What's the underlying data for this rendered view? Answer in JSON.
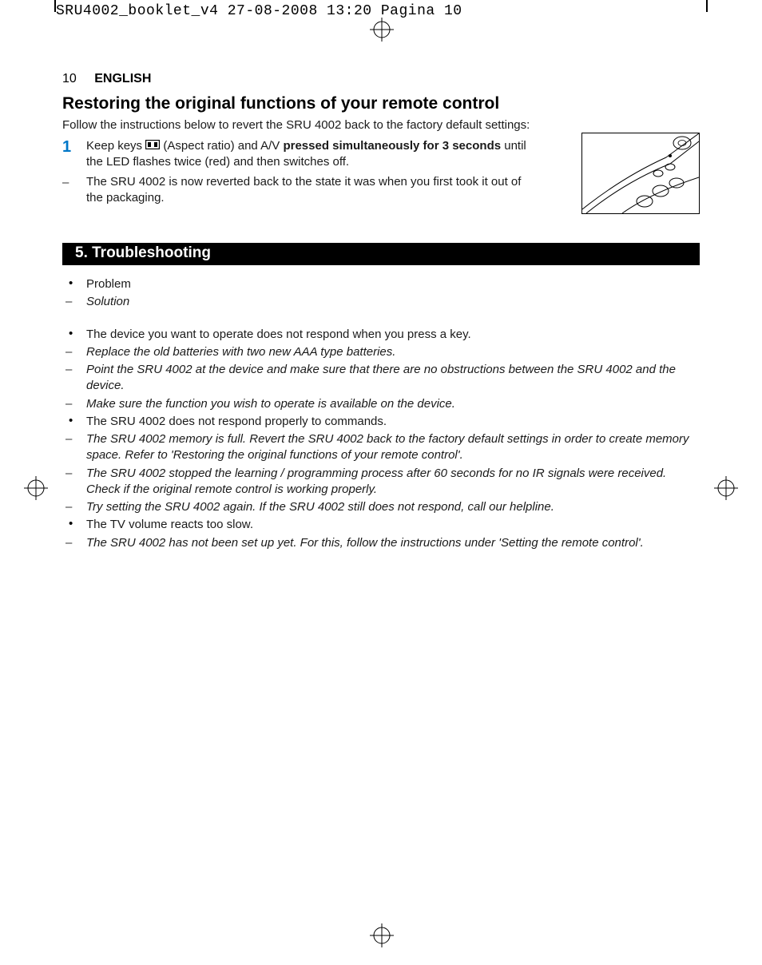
{
  "meta": {
    "header_line": "SRU4002_booklet_v4  27-08-2008  13:20  Pagina 10"
  },
  "page_header": {
    "number": "10",
    "language": "ENGLISH"
  },
  "restoring": {
    "title": "Restoring the original functions of your remote control",
    "intro": "Follow the instructions below to revert the SRU 4002 back to the factory default settings:",
    "step1_num": "1",
    "step1_a": "Keep keys ",
    "step1_b": " (Aspect ratio) and A/V ",
    "step1_bold1": "pressed simultaneously",
    "step1_c": " ",
    "step1_bold2": "for 3 seconds",
    "step1_d": " until the LED flashes twice (red) and then switches off.",
    "step_dash": "–",
    "step2": "The SRU 4002 is now reverted back to the state it was when you first took it out of the packaging."
  },
  "troubleshooting": {
    "bar": "5. Troubleshooting",
    "rows": [
      {
        "marker": "bullet",
        "style": "normal",
        "text": "Problem"
      },
      {
        "marker": "dash",
        "style": "italic",
        "text": "Solution"
      },
      {
        "marker": "spacer"
      },
      {
        "marker": "bullet",
        "style": "normal",
        "text": "The device you want to operate does not respond when you press a key."
      },
      {
        "marker": "dash",
        "style": "italic",
        "text": "Replace the old batteries with two new AAA type batteries."
      },
      {
        "marker": "dash",
        "style": "italic",
        "text": "Point the SRU 4002 at the device and make sure that there are no obstructions between the SRU 4002 and the device."
      },
      {
        "marker": "dash",
        "style": "italic",
        "text": "Make sure the function you wish to operate is available on the device."
      },
      {
        "marker": "bullet",
        "style": "normal",
        "text": "The SRU 4002 does not respond properly to commands."
      },
      {
        "marker": "dash",
        "style": "italic",
        "text": "The SRU 4002 memory is full. Revert the SRU 4002 back to the factory default settings in order to create memory space. Refer to 'Restoring the original functions of your remote control'."
      },
      {
        "marker": "dash",
        "style": "italic",
        "text": "The SRU 4002 stopped the learning / programming process after 60 seconds for no IR signals were received. Check if the original remote control is working properly."
      },
      {
        "marker": "dash",
        "style": "italic",
        "text": "Try setting the SRU 4002 again. If the SRU 4002 still does not respond, call our helpline."
      },
      {
        "marker": "bullet",
        "style": "normal",
        "text": "The TV volume reacts too slow."
      },
      {
        "marker": "dash",
        "style": "italic",
        "text": "The SRU 4002 has not been set up yet. For this, follow the instructions under 'Setting the remote control'."
      }
    ]
  },
  "colors": {
    "accent": "#0077c8",
    "text": "#1a1a1a",
    "bar_bg": "#000000",
    "bar_fg": "#ffffff"
  }
}
